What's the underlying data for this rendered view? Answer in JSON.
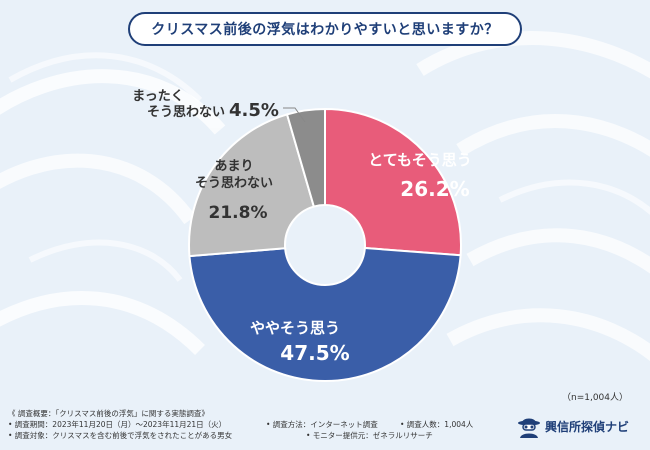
{
  "title": "クリスマス前後の浮気はわかりやすいと思いますか？",
  "colors": {
    "title_border": "#1f3f78",
    "background": "#e9f1f9"
  },
  "chart_data": {
    "type": "pie",
    "donut": true,
    "slices": [
      {
        "label": "とてもそう思う",
        "label2": "",
        "value": 26.2,
        "value_text": "26.2%",
        "color": "#e85c7a",
        "text_color": "#ffffff"
      },
      {
        "label": "ややそう思う",
        "label2": "",
        "value": 47.5,
        "value_text": "47.5%",
        "color": "#3a5ea8",
        "text_color": "#ffffff"
      },
      {
        "label": "あまり",
        "label2": "そう思わない",
        "value": 21.8,
        "value_text": "21.8%",
        "color": "#bdbdbd",
        "text_color": "#333333"
      },
      {
        "label": "まったく",
        "label2": "そう思わない",
        "value": 4.5,
        "value_text": "4.5%",
        "color": "#8c8c8c",
        "text_color": "#333333"
      }
    ]
  },
  "sample_size": "（n=1,004人）",
  "footer": {
    "overview": "《 調査概要：「クリスマス前後の浮気」に関する実態調査》",
    "period": "• 調査期間：2023年11月20日（月）〜2023年11月21日（火）",
    "method": "• 調査方法：インターネット調査",
    "count": "• 調査人数：1,004人",
    "target": "• 調査対象：クリスマスを含む前後で浮気をされたことがある男女",
    "provider": "• モニター提供元：ゼネラルリサーチ"
  },
  "logo": {
    "text": "興信所探偵ナビ",
    "icon": "detective-icon"
  }
}
